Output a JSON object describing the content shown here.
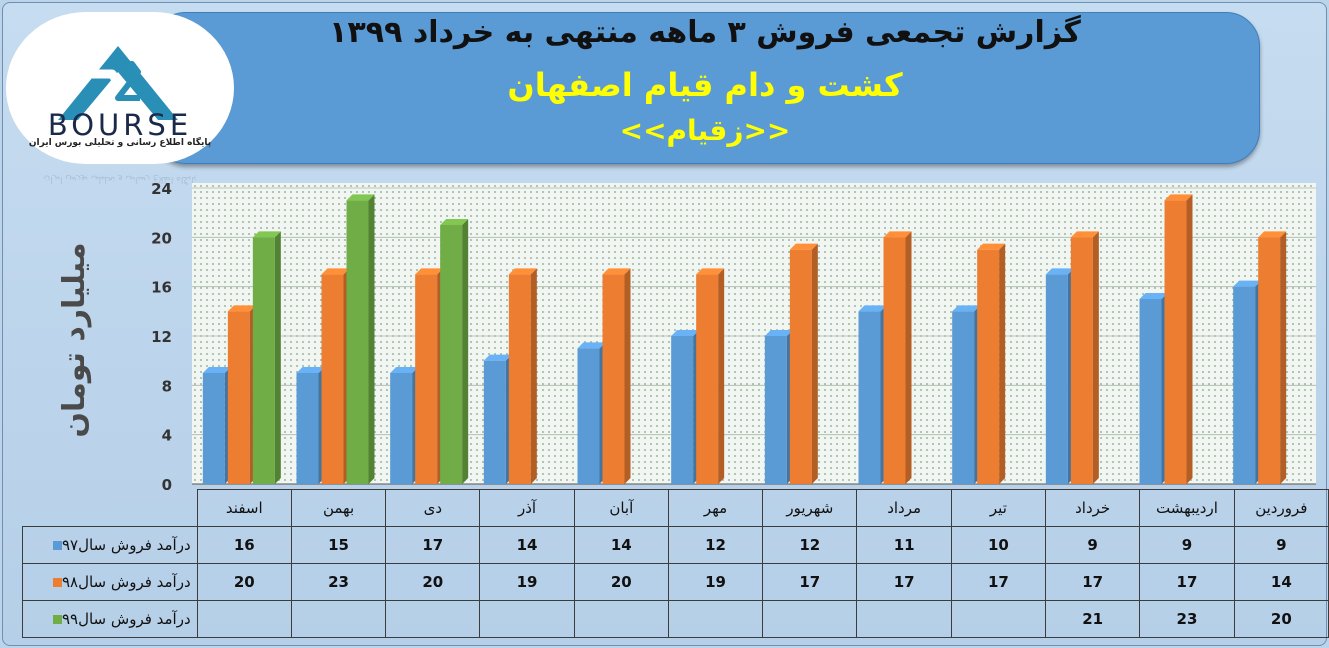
{
  "header": {
    "title": "گزارش تجمعی فروش  ۳ ماهه منتهی به خرداد ۱۳۹۹",
    "company": "کشت و دام قیام اصفهان",
    "symbol": "<<زقیام>>"
  },
  "logo": {
    "text": "BOURSE",
    "subtitle": "پایگاه اطلاع رسانی و تحلیلی بورس ایران"
  },
  "colors": {
    "s97": "#5b9bd5",
    "s98": "#ed7d31",
    "s99": "#70ad47"
  },
  "chart_data": {
    "type": "bar",
    "ylabel": "میلیارد تومان",
    "ylim": [
      0,
      24
    ],
    "yticks": [
      "0",
      "4",
      "8",
      "12",
      "16",
      "20",
      "24"
    ],
    "categories": [
      "فروردین",
      "اردیبهشت",
      "خرداد",
      "تیر",
      "مرداد",
      "شهریور",
      "مهر",
      "آبان",
      "آذر",
      "دی",
      "بهمن",
      "اسفند"
    ],
    "series": [
      {
        "name": "درآمد فروش سال۹۷",
        "color": "#5b9bd5",
        "values": [
          "9",
          "9",
          "9",
          "10",
          "11",
          "12",
          "12",
          "14",
          "14",
          "17",
          "15",
          "16"
        ]
      },
      {
        "name": "درآمد فروش سال۹۸",
        "color": "#ed7d31",
        "values": [
          "14",
          "17",
          "17",
          "17",
          "17",
          "17",
          "19",
          "20",
          "19",
          "20",
          "23",
          "20"
        ]
      },
      {
        "name": "درآمد فروش سال۹۹",
        "color": "#70ad47",
        "values": [
          "20",
          "23",
          "21",
          "",
          "",
          "",
          "",
          "",
          "",
          "",
          "",
          ""
        ]
      }
    ],
    "grid": true,
    "legend": "data-table"
  }
}
